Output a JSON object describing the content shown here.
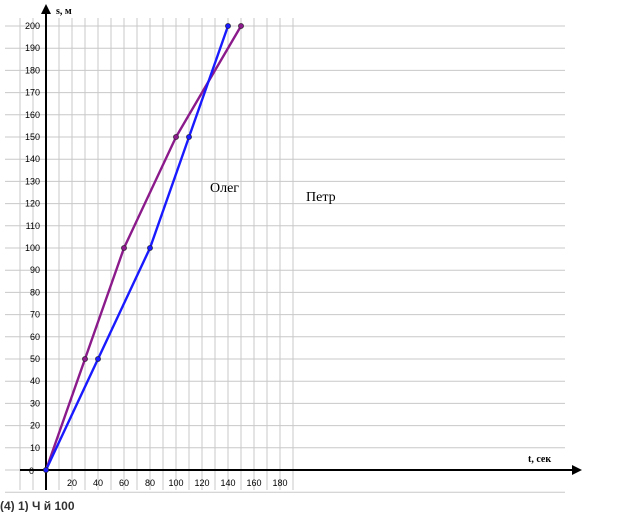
{
  "chart_data": {
    "type": "line",
    "title": "",
    "xlabel": "t, сек",
    "ylabel": "s, м",
    "xlim": [
      0,
      190
    ],
    "ylim": [
      0,
      200
    ],
    "x_ticks": [
      "20",
      "40",
      "60",
      "80",
      "100",
      "120",
      "140",
      "160",
      "180"
    ],
    "y_ticks": [
      "10",
      "20",
      "30",
      "40",
      "50",
      "60",
      "70",
      "80",
      "90",
      "100",
      "110",
      "120",
      "130",
      "140",
      "150",
      "160",
      "170",
      "180",
      "190",
      "200"
    ],
    "origin_label": "0",
    "grid": true,
    "series": [
      {
        "name": "Олег",
        "color": "#8b1a8b",
        "points": [
          [
            0,
            0
          ],
          [
            30,
            50
          ],
          [
            60,
            100
          ],
          [
            100,
            150
          ],
          [
            150,
            200
          ]
        ]
      },
      {
        "name": "Петр",
        "color": "#1a1aff",
        "points": [
          [
            0,
            0
          ],
          [
            40,
            50
          ],
          [
            80,
            100
          ],
          [
            110,
            150
          ],
          [
            140,
            200
          ]
        ]
      }
    ]
  },
  "footer_text": "(4) 1) Ч          й 100"
}
